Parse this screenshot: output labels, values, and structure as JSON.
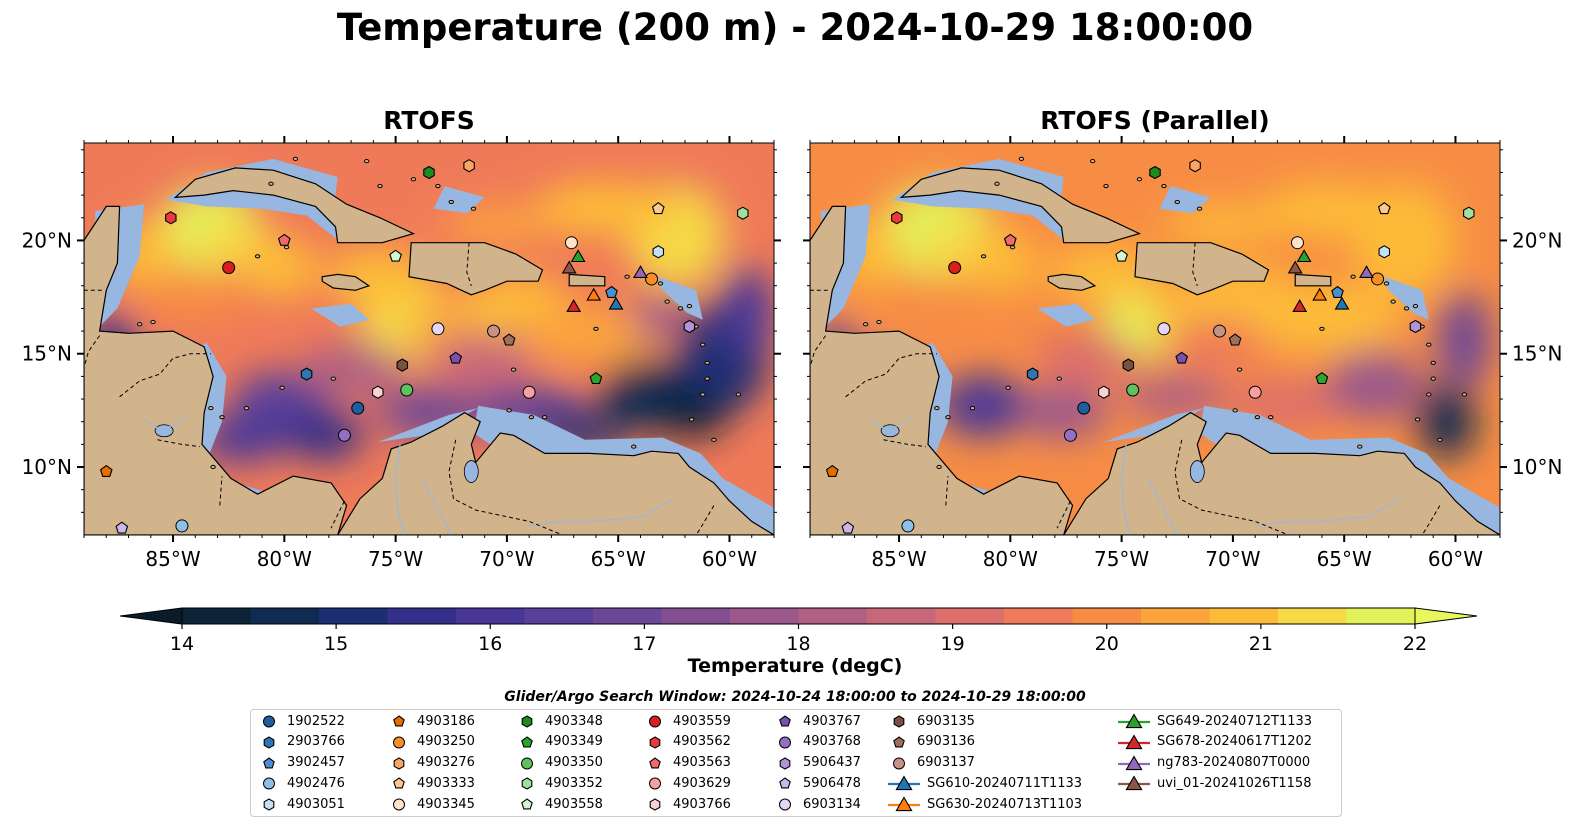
{
  "title": "Temperature (200 m) - 2024-10-29 18:00:00",
  "panels": [
    {
      "title": "RTOFS"
    },
    {
      "title": "RTOFS (Parallel)"
    }
  ],
  "axes": {
    "lon_ticks": [
      "85°W",
      "80°W",
      "75°W",
      "70°W",
      "65°W",
      "60°W"
    ],
    "lat_ticks": [
      "20°N",
      "15°N",
      "10°N"
    ]
  },
  "colorbar": {
    "label": "Temperature (degC)",
    "min": 14,
    "max": 22,
    "ticks": [
      "14",
      "15",
      "16",
      "17",
      "18",
      "19",
      "20",
      "21",
      "22"
    ],
    "colors": [
      "#0c2237",
      "#0f2b51",
      "#1e2e72",
      "#332f8a",
      "#483797",
      "#5a3f9a",
      "#6d4797",
      "#824f92",
      "#9a588b",
      "#b06082",
      "#c7677a",
      "#dc6e6c",
      "#ef7a59",
      "#f78d45",
      "#fba43c",
      "#fdbc38",
      "#f5d946",
      "#e2f25a"
    ],
    "under_color": "#081c2c",
    "over_color": "#e8f75c"
  },
  "map_colors": {
    "land": "#d2b48c",
    "shelf": "#97b6e0",
    "coast": "#000000"
  },
  "legend": {
    "title": "Glider/Argo Search Window: 2024-10-24 18:00:00 to 2024-10-29 18:00:00",
    "columns": [
      [
        {
          "label": "1902522",
          "marker": "circle",
          "color": "#1f5f9f"
        },
        {
          "label": "2903766",
          "marker": "hexagon",
          "color": "#2f74b5"
        },
        {
          "label": "3902457",
          "marker": "pentagon",
          "color": "#4a90cf"
        },
        {
          "label": "4902476",
          "marker": "circle",
          "color": "#8cc0e8"
        },
        {
          "label": "4903051",
          "marker": "hexagon",
          "color": "#c4e0f4"
        }
      ],
      [
        {
          "label": "4903186",
          "marker": "pentagon",
          "color": "#e66d00"
        },
        {
          "label": "4903250",
          "marker": "circle",
          "color": "#f98e26"
        },
        {
          "label": "4903276",
          "marker": "hexagon",
          "color": "#fca761"
        },
        {
          "label": "4903333",
          "marker": "pentagon",
          "color": "#fdc792"
        },
        {
          "label": "4903345",
          "marker": "circle",
          "color": "#fee3c8"
        }
      ],
      [
        {
          "label": "4903348",
          "marker": "hexagon",
          "color": "#1c8a1c"
        },
        {
          "label": "4903349",
          "marker": "pentagon",
          "color": "#2ba52b"
        },
        {
          "label": "4903350",
          "marker": "circle",
          "color": "#5ec25e"
        },
        {
          "label": "4903352",
          "marker": "hexagon",
          "color": "#9fe09f"
        },
        {
          "label": "4903558",
          "marker": "pentagon",
          "color": "#d3f5d3"
        }
      ],
      [
        {
          "label": "4903559",
          "marker": "circle",
          "color": "#d62020"
        },
        {
          "label": "4903562",
          "marker": "hexagon",
          "color": "#e83a3a"
        },
        {
          "label": "4903563",
          "marker": "pentagon",
          "color": "#f06a6a"
        },
        {
          "label": "4903629",
          "marker": "circle",
          "color": "#f8a0a0"
        },
        {
          "label": "4903766",
          "marker": "hexagon",
          "color": "#fbd2d2"
        }
      ],
      [
        {
          "label": "4903767",
          "marker": "pentagon",
          "color": "#7a4fb0"
        },
        {
          "label": "4903768",
          "marker": "circle",
          "color": "#9470c4"
        },
        {
          "label": "5906437",
          "marker": "hexagon",
          "color": "#b293d8"
        },
        {
          "label": "5906478",
          "marker": "pentagon",
          "color": "#cfb6ea"
        },
        {
          "label": "6903134",
          "marker": "circle",
          "color": "#e6d6f6"
        }
      ],
      [
        {
          "label": "6903135",
          "marker": "hexagon",
          "color": "#7a5040"
        },
        {
          "label": "6903136",
          "marker": "pentagon",
          "color": "#a0705e"
        },
        {
          "label": "6903137",
          "marker": "circle",
          "color": "#c59283"
        },
        {
          "label": "SG610-20240711T1133",
          "marker": "triangle-line",
          "color": "#1f77b4"
        },
        {
          "label": "SG630-20240713T1103",
          "marker": "triangle-line",
          "color": "#ff7f0e"
        }
      ],
      [
        {
          "label": "SG649-20240712T1133",
          "marker": "triangle-line",
          "color": "#2ca02c"
        },
        {
          "label": "SG678-20240617T1202",
          "marker": "triangle-line",
          "color": "#d62728"
        },
        {
          "label": "ng783-20240807T0000",
          "marker": "triangle-line",
          "color": "#9467bd"
        },
        {
          "label": "uvi_01-20241026T1158",
          "marker": "triangle-line",
          "color": "#8c564b"
        }
      ]
    ]
  },
  "platforms": [
    {
      "id": "1902522",
      "lon": -76.7,
      "lat": 12.6
    },
    {
      "id": "2903766",
      "lon": -79.0,
      "lat": 14.1
    },
    {
      "id": "3902457",
      "lon": -65.3,
      "lat": 17.7
    },
    {
      "id": "4902476",
      "lon": -84.6,
      "lat": 7.4
    },
    {
      "id": "4903051",
      "lon": -63.2,
      "lat": 19.5
    },
    {
      "id": "4903186",
      "lon": -88.0,
      "lat": 9.8
    },
    {
      "id": "4903250",
      "lon": -63.5,
      "lat": 18.3
    },
    {
      "id": "4903276",
      "lon": -71.7,
      "lat": 23.3
    },
    {
      "id": "4903333",
      "lon": -63.2,
      "lat": 21.4
    },
    {
      "id": "4903345",
      "lon": -67.1,
      "lat": 19.9
    },
    {
      "id": "4903348",
      "lon": -73.5,
      "lat": 23.0
    },
    {
      "id": "4903349",
      "lon": -66.0,
      "lat": 13.9
    },
    {
      "id": "4903350",
      "lon": -74.5,
      "lat": 13.4
    },
    {
      "id": "4903352",
      "lon": -59.4,
      "lat": 21.2
    },
    {
      "id": "4903558",
      "lon": -75.0,
      "lat": 19.3
    },
    {
      "id": "4903559",
      "lon": -82.5,
      "lat": 18.8
    },
    {
      "id": "4903562",
      "lon": -85.1,
      "lat": 21.0
    },
    {
      "id": "4903563",
      "lon": -80.0,
      "lat": 20.0
    },
    {
      "id": "4903629",
      "lon": -69.0,
      "lat": 13.3
    },
    {
      "id": "4903766",
      "lon": -75.8,
      "lat": 13.3
    },
    {
      "id": "4903767",
      "lon": -72.3,
      "lat": 14.8
    },
    {
      "id": "4903768",
      "lon": -77.3,
      "lat": 11.4
    },
    {
      "id": "5906437",
      "lon": -61.8,
      "lat": 16.2
    },
    {
      "id": "5906478",
      "lon": -87.3,
      "lat": 7.3
    },
    {
      "id": "6903134",
      "lon": -73.1,
      "lat": 16.1
    },
    {
      "id": "6903135",
      "lon": -74.7,
      "lat": 14.5
    },
    {
      "id": "6903136",
      "lon": -69.9,
      "lat": 15.6
    },
    {
      "id": "6903137",
      "lon": -70.6,
      "lat": 16.0
    },
    {
      "id": "SG610-20240711T1133",
      "lon": -65.1,
      "lat": 17.2,
      "triangle": true
    },
    {
      "id": "SG630-20240713T1103",
      "lon": -66.1,
      "lat": 17.6,
      "triangle": true
    },
    {
      "id": "SG649-20240712T1133",
      "lon": -66.8,
      "lat": 19.3,
      "triangle": true
    },
    {
      "id": "SG678-20240617T1202",
      "lon": -67.0,
      "lat": 17.1,
      "triangle": true
    },
    {
      "id": "ng783-20240807T0000",
      "lon": -64.0,
      "lat": 18.6,
      "triangle": true
    },
    {
      "id": "uvi_01-20241026T1158",
      "lon": -67.2,
      "lat": 18.8,
      "triangle": true
    }
  ]
}
